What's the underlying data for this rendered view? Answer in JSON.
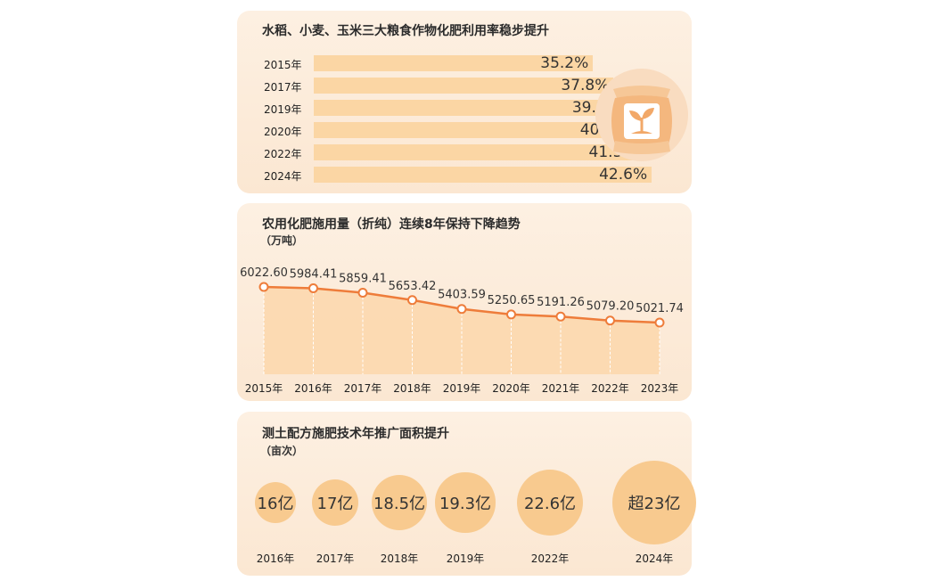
{
  "colors": {
    "panel": "#fbe9d6",
    "bar": "#fbd6a4",
    "line": "#ee7c3a",
    "area": "#fcd7ab",
    "bubble": "#f8ca8f"
  },
  "charts": [
    {
      "type": "bar",
      "title": "水稻、小麦、玉米三大粮食作物化肥利用率稳步提升",
      "categories": [
        "2015年",
        "2017年",
        "2019年",
        "2020年",
        "2022年",
        "2024年"
      ],
      "values": [
        35.2,
        37.8,
        39.2,
        40.2,
        41.3,
        42.6
      ],
      "value_labels": [
        "35.2%",
        "37.8%",
        "39.2%",
        "40.2%",
        "41.3%",
        "42.6%"
      ],
      "orientation": "horizontal",
      "icon": "fertilizer-bag-icon"
    },
    {
      "type": "area",
      "title": "农用化肥施用量（折纯）连续8年保持下降趋势",
      "unit": "（万吨）",
      "x": [
        "2015年",
        "2016年",
        "2017年",
        "2018年",
        "2019年",
        "2020年",
        "2021年",
        "2022年",
        "2023年"
      ],
      "values": [
        6022.6,
        5984.41,
        5859.41,
        5653.42,
        5403.59,
        5250.65,
        5191.26,
        5079.2,
        5021.74
      ],
      "value_labels": [
        "6022.60",
        "5984.41",
        "5859.41",
        "5653.42",
        "5403.59",
        "5250.65",
        "5191.26",
        "5079.20",
        "5021.74"
      ]
    },
    {
      "type": "bubble",
      "title": "测土配方施肥技术年推广面积提升",
      "unit": "（亩次）",
      "categories": [
        "2016年",
        "2017年",
        "2018年",
        "2019年",
        "2022年",
        "2024年"
      ],
      "values": [
        16,
        17,
        18.5,
        19.3,
        22.6,
        23
      ],
      "value_labels": [
        "16亿",
        "17亿",
        "18.5亿",
        "19.3亿",
        "22.6亿",
        "超23亿"
      ]
    }
  ]
}
